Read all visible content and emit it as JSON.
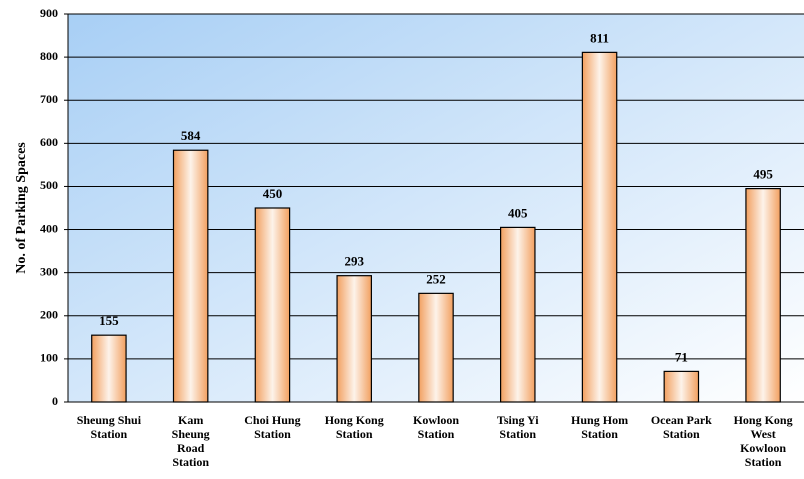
{
  "chart_data": {
    "type": "bar",
    "ylabel": "No. of Parking Spaces",
    "ylim": [
      0,
      900
    ],
    "yticks": [
      "0",
      "100",
      "200",
      "300",
      "400",
      "500",
      "600",
      "700",
      "800",
      "900"
    ],
    "grid": true,
    "categories": [
      "Sheung Shui\nStation",
      "Kam\nSheung\nRoad\nStation",
      "Choi Hung\nStation",
      "Hong Kong\nStation",
      "Kowloon\nStation",
      "Tsing Yi\nStation",
      "Hung Hom\nStation",
      "Ocean Park\nStation",
      "Hong Kong\nWest\nKowloon\nStation"
    ],
    "values": [
      155,
      584,
      450,
      293,
      252,
      405,
      811,
      71,
      495
    ],
    "colors": {
      "bar_edge": "#000000",
      "bar_center": "#fdf3ea",
      "bar_side": "#f2a060",
      "plot_bg_start": "#a8cff5",
      "plot_bg_end": "#ffffff",
      "grid": "#000000"
    }
  }
}
